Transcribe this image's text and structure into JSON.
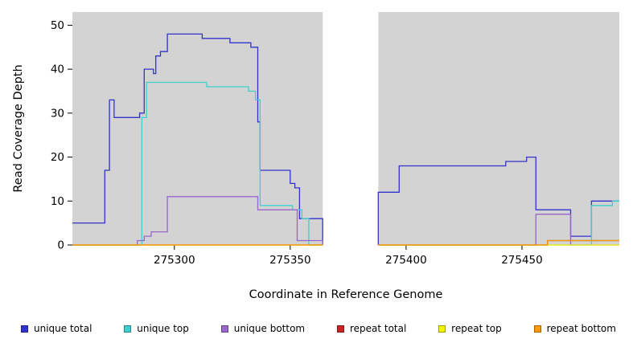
{
  "chart_data": {
    "type": "line",
    "subtype": "step-hv",
    "title": "",
    "xlabel": "Coordinate in Reference Genome",
    "ylabel": "Read Coverage Depth",
    "xlim": [
      275256,
      275492
    ],
    "ylim": [
      0,
      53
    ],
    "xticks": [
      275300,
      275350,
      275400,
      275450
    ],
    "yticks": [
      0,
      10,
      20,
      30,
      40,
      50
    ],
    "grid": false,
    "plot_background": "#d3d3d3",
    "masked_region_x": [
      275364,
      275388
    ],
    "legend_position": "bottom",
    "series": [
      {
        "name": "unique total",
        "color": "#3333CC",
        "segments": [
          [
            [
              275256,
              5
            ],
            [
              275270,
              17
            ],
            [
              275272,
              33
            ],
            [
              275274,
              29
            ],
            [
              275285,
              30
            ],
            [
              275287,
              40
            ],
            [
              275291,
              39
            ],
            [
              275292,
              43
            ],
            [
              275294,
              44
            ],
            [
              275297,
              48
            ],
            [
              275311,
              48
            ],
            [
              275312,
              47
            ],
            [
              275322,
              47
            ],
            [
              275324,
              46
            ],
            [
              275331,
              46
            ],
            [
              275333,
              45
            ],
            [
              275336,
              28
            ],
            [
              275337,
              17
            ],
            [
              275349,
              17
            ],
            [
              275350,
              14
            ],
            [
              275352,
              13
            ],
            [
              275354,
              6
            ],
            [
              275364,
              0
            ]
          ],
          [
            [
              275388,
              0
            ],
            [
              275388,
              12
            ],
            [
              275396,
              12
            ],
            [
              275397,
              18
            ],
            [
              275442,
              18
            ],
            [
              275443,
              19
            ],
            [
              275451,
              19
            ],
            [
              275452,
              20
            ],
            [
              275455,
              20
            ],
            [
              275456,
              8
            ],
            [
              275470,
              8
            ],
            [
              275471,
              2
            ],
            [
              275479,
              2
            ],
            [
              275480,
              10
            ],
            [
              275492,
              10
            ]
          ]
        ]
      },
      {
        "name": "unique top",
        "color": "#3FCFCF",
        "segments": [
          [
            [
              275256,
              0
            ],
            [
              275286,
              29
            ],
            [
              275288,
              37
            ],
            [
              275312,
              37
            ],
            [
              275314,
              36
            ],
            [
              275326,
              36
            ],
            [
              275332,
              35
            ],
            [
              275335,
              33
            ],
            [
              275337,
              9
            ],
            [
              275350,
              9
            ],
            [
              275351,
              8
            ],
            [
              275355,
              6
            ],
            [
              275358,
              0
            ],
            [
              275364,
              0
            ]
          ],
          [
            [
              275388,
              0
            ],
            [
              275479,
              0
            ],
            [
              275480,
              9
            ],
            [
              275488,
              9
            ],
            [
              275489,
              10
            ],
            [
              275492,
              10
            ]
          ]
        ]
      },
      {
        "name": "unique bottom",
        "color": "#9966CC",
        "segments": [
          [
            [
              275256,
              0
            ],
            [
              275283,
              0
            ],
            [
              275284,
              1
            ],
            [
              275286,
              1
            ],
            [
              275287,
              2
            ],
            [
              275289,
              2
            ],
            [
              275290,
              3
            ],
            [
              275296,
              3
            ],
            [
              275297,
              11
            ],
            [
              275335,
              11
            ],
            [
              275336,
              8
            ],
            [
              275352,
              8
            ],
            [
              275353,
              1
            ],
            [
              275363,
              1
            ],
            [
              275364,
              0
            ]
          ],
          [
            [
              275388,
              0
            ],
            [
              275455,
              0
            ],
            [
              275456,
              7
            ],
            [
              275470,
              7
            ],
            [
              275471,
              0
            ],
            [
              275492,
              0
            ]
          ]
        ]
      },
      {
        "name": "repeat total",
        "color": "#CC2222",
        "segments": [
          [
            [
              275256,
              0
            ],
            [
              275364,
              0
            ]
          ],
          [
            [
              275388,
              0
            ],
            [
              275460,
              0
            ],
            [
              275461,
              1
            ],
            [
              275492,
              1
            ]
          ]
        ]
      },
      {
        "name": "repeat top",
        "color": "#F5F500",
        "segments": [
          [
            [
              275256,
              0
            ],
            [
              275364,
              0
            ]
          ],
          [
            [
              275388,
              0
            ],
            [
              275492,
              0
            ]
          ]
        ]
      },
      {
        "name": "repeat bottom",
        "color": "#FF9900",
        "segments": [
          [
            [
              275256,
              0
            ],
            [
              275364,
              0
            ]
          ],
          [
            [
              275388,
              0
            ],
            [
              275460,
              0
            ],
            [
              275461,
              1
            ],
            [
              275492,
              1
            ]
          ]
        ]
      }
    ]
  }
}
